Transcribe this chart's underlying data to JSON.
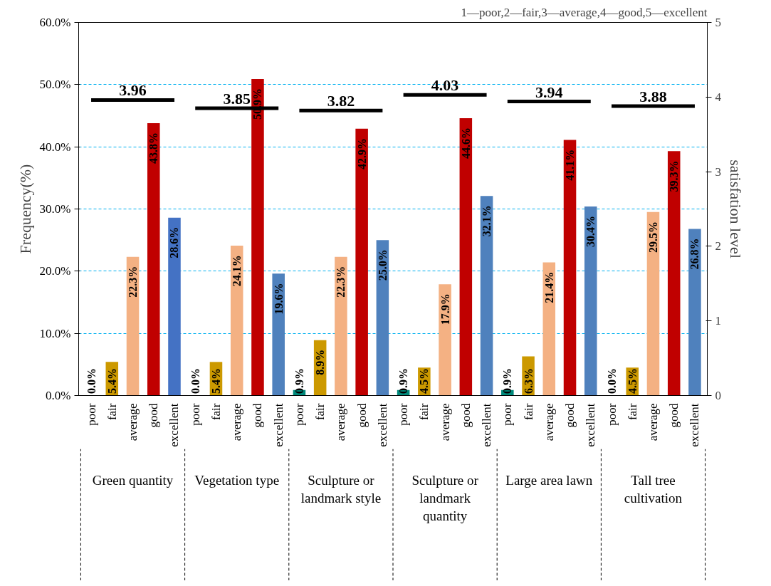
{
  "chart_data": {
    "type": "bar",
    "categories": [
      "poor",
      "fair",
      "average",
      "good",
      "excellent",
      "poor",
      "fair",
      "average",
      "good",
      "excellent",
      "poor",
      "fair",
      "average",
      "good",
      "excellent",
      "poor",
      "fair",
      "average",
      "good",
      "excellent",
      "poor",
      "fair",
      "average",
      "good",
      "excellent",
      "poor",
      "fair",
      "average",
      "good",
      "excellent"
    ],
    "ylabel": "Frequency(%)",
    "y2label": "satisfation level",
    "ylim": [
      0,
      60
    ],
    "yticks": [
      {
        "value": 0,
        "label": "0.0%"
      },
      {
        "value": 10,
        "label": "10.0%"
      },
      {
        "value": 20,
        "label": "20.0%"
      },
      {
        "value": 30,
        "label": "30.0%"
      },
      {
        "value": 40,
        "label": "40.0%"
      },
      {
        "value": 50,
        "label": "50.0%"
      },
      {
        "value": 60,
        "label": "60.0%"
      }
    ],
    "y2lim": [
      0,
      5
    ],
    "y2ticks": [
      0,
      1,
      2,
      3,
      4,
      5
    ],
    "grid": "y",
    "annotations": [
      "1—poor,2—fair,3—average,4—good,5—excellent",
      "Green quantity",
      "Vegetation type",
      "Sculpture or landmark style",
      "Sculpture or landmark quantity",
      "Large area lawn",
      "Tall tree cultivation"
    ],
    "series": [
      {
        "values": [
          0.0,
          5.4,
          22.3,
          43.8,
          28.6,
          0.0,
          5.4,
          24.1,
          50.9,
          19.6,
          0.9,
          8.9,
          22.3,
          42.9,
          25.0,
          0.9,
          4.5,
          17.9,
          44.6,
          32.1,
          0.9,
          6.3,
          21.4,
          41.1,
          30.4,
          0.0,
          4.5,
          29.5,
          39.3,
          26.8
        ],
        "colors": [
          "#00897b",
          "#cc9900",
          "#f4b183",
          "#c00000",
          "#4472c4",
          "#00897b",
          "#cc9900",
          "#f4b183",
          "#c00000",
          "#4f81bd",
          "#00897b",
          "#cc9900",
          "#f4b183",
          "#c00000",
          "#4f81bd",
          "#00897b",
          "#cc9900",
          "#f4b183",
          "#c00000",
          "#4f81bd",
          "#00897b",
          "#cc9900",
          "#f4b183",
          "#c00000",
          "#4f81bd",
          "#00897b",
          "#cc9900",
          "#f4b183",
          "#c00000",
          "#4f81bd"
        ],
        "value_labels": [
          "0.0%",
          "5.4%",
          "22.3%",
          "43.8%",
          "28.6%",
          "0.0%",
          "5.4%",
          "24.1%",
          "50.9%",
          "19.6%",
          "0.9%",
          "8.9%",
          "22.3%",
          "42.9%",
          "25.0%",
          "0.9%",
          "4.5%",
          "17.9%",
          "44.6%",
          "32.1%",
          "0.9%",
          "6.3%",
          "21.4%",
          "41.1%",
          "30.4%",
          "0.0%",
          "4.5%",
          "29.5%",
          "39.3%",
          "26.8%"
        ]
      },
      {
        "type": "line",
        "axis": "y2",
        "color": "#000000",
        "values": [
          3.96,
          3.96,
          3.96,
          3.96,
          3.96,
          3.85,
          3.85,
          3.85,
          3.85,
          3.85,
          3.82,
          3.82,
          3.82,
          3.82,
          3.82,
          4.03,
          4.03,
          4.03,
          4.03,
          4.03,
          3.94,
          3.94,
          3.94,
          3.94,
          3.94,
          3.88,
          3.88,
          3.88,
          3.88,
          3.88
        ],
        "value_labels": [
          null,
          null,
          "3.96",
          null,
          null,
          null,
          null,
          "3.85",
          null,
          null,
          null,
          null,
          "3.82",
          null,
          null,
          null,
          null,
          "4.03",
          null,
          null,
          null,
          null,
          "3.94",
          null,
          null,
          null,
          null,
          "3.88",
          null,
          null
        ]
      }
    ]
  }
}
